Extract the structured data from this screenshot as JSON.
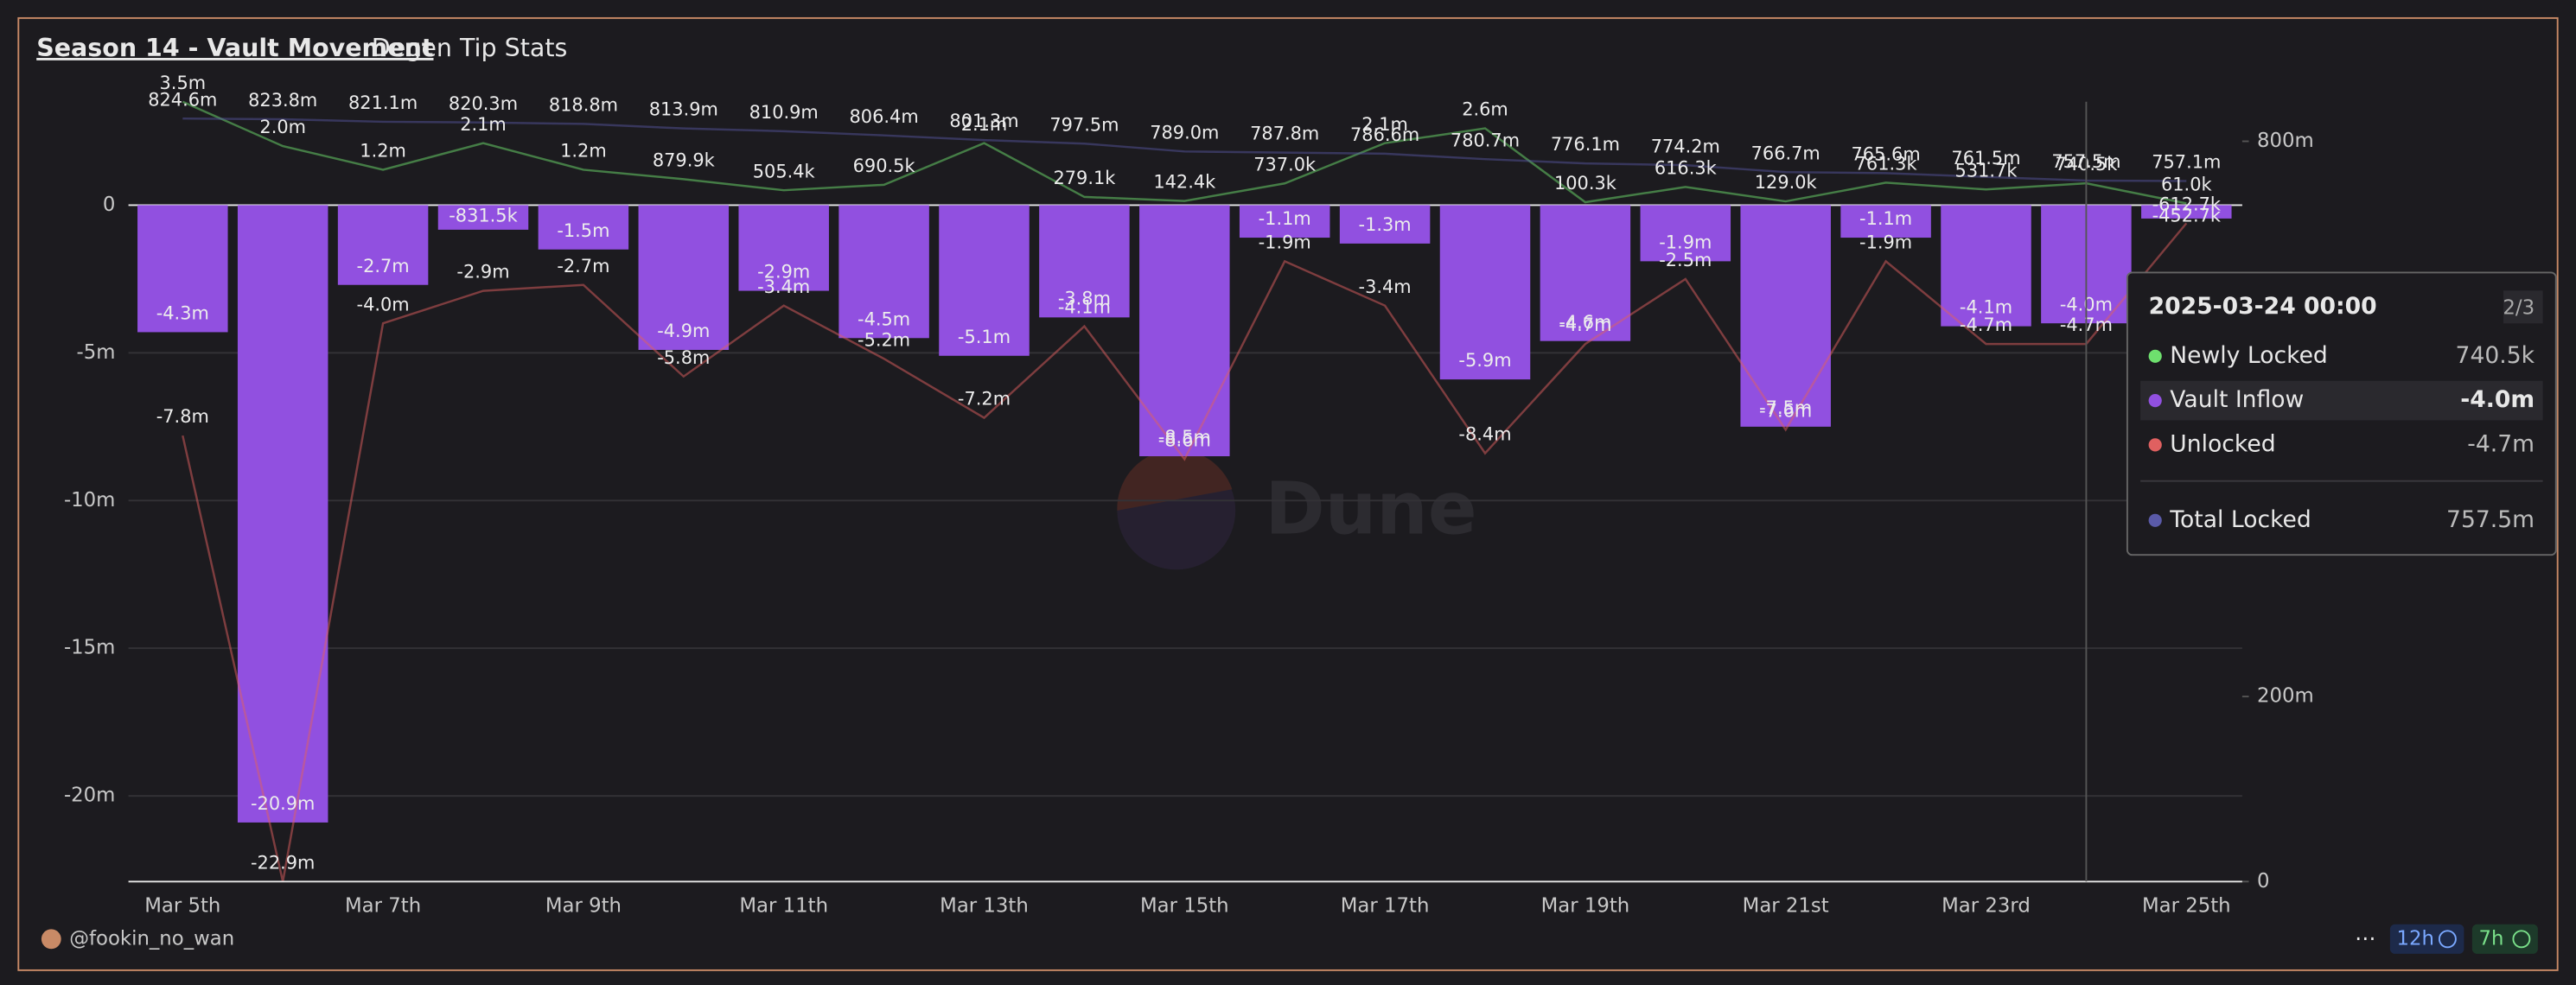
{
  "chart_data": {
    "type": "bar",
    "title": "Season 14 - Vault Movement",
    "tab": "Degen Tip Stats",
    "author": "@fookin_no_wan",
    "watermark": "Dune",
    "badges": [
      "12h",
      "7h"
    ],
    "categories": [
      "Mar 5th",
      null,
      "Mar 7th",
      null,
      "Mar 9th",
      null,
      "Mar 11th",
      null,
      "Mar 13th",
      null,
      "Mar 15th",
      null,
      "Mar 17th",
      null,
      "Mar 19th",
      null,
      "Mar 21st",
      null,
      "Mar 23rd",
      null,
      "Mar 25th"
    ],
    "ylim": [
      -22.9,
      3.5
    ],
    "yticks": [
      0,
      {
        "value": -5,
        "label": "-5m"
      },
      {
        "value": -10,
        "label": "-10m"
      },
      {
        "value": -15,
        "label": "-15m"
      },
      {
        "value": -20,
        "label": "-20m"
      }
    ],
    "y2lim": [
      0,
      842.7
    ],
    "y2ticks": [
      0,
      {
        "value": 200,
        "label": "200m"
      },
      {
        "value": 800,
        "label": "800m"
      }
    ],
    "grid": true,
    "series": [
      {
        "name": "Newly Locked",
        "type": "line",
        "color": "#6ee06e",
        "values": [
          3.5,
          2.0,
          1.2,
          2.1,
          1.2,
          0.8799,
          0.5054,
          0.6905,
          2.1,
          0.2791,
          0.1424,
          0.737,
          2.1,
          2.6,
          0.1003,
          0.6163,
          0.129,
          0.7613,
          0.5317,
          0.7405,
          0.061
        ],
        "value_labels": [
          "3.5m",
          "2.0m",
          "1.2m",
          "2.1m",
          "1.2m",
          "879.9k",
          "505.4k",
          "690.5k",
          "2.1m",
          "279.1k",
          "142.4k",
          "737.0k",
          "2.1m",
          "2.6m",
          "100.3k",
          "616.3k",
          "129.0k",
          "761.3k",
          "531.7k",
          "740.5k",
          "61.0k"
        ]
      },
      {
        "name": "Vault Inflow",
        "type": "bar",
        "color": "#9150e0",
        "values": [
          -4.3,
          -20.9,
          -2.7,
          -0.8315,
          -1.5,
          -4.9,
          -2.9,
          -4.5,
          -5.1,
          -3.8,
          -8.5,
          -1.1,
          -1.3,
          -5.9,
          -4.6,
          -1.9,
          -7.5,
          -1.1,
          -4.1,
          -4.0,
          -0.4527
        ],
        "value_labels": [
          "-4.3m",
          "-20.9m",
          "-2.7m",
          "-831.5k",
          "-1.5m",
          "-4.9m",
          "-2.9m",
          "-4.5m",
          "-5.1m",
          "-3.8m",
          "-8.5m",
          "-1.1m",
          "-1.3m",
          "-5.9m",
          "-4.6m",
          "-1.9m",
          "-7.5m",
          "-1.1m",
          "-4.1m",
          "-4.0m",
          "-452.7k"
        ]
      },
      {
        "name": "Unlocked",
        "type": "line",
        "color": "#e06060",
        "values": [
          -7.8,
          -22.9,
          -4.0,
          -2.9,
          -2.7,
          -5.8,
          -3.4,
          -5.2,
          -7.2,
          -4.1,
          -8.6,
          -1.9,
          -3.4,
          -8.4,
          -4.7,
          -2.5,
          -7.6,
          -1.9,
          -4.7,
          -4.7,
          -0.6127
        ],
        "value_labels": [
          "-7.8m",
          "-22.9m",
          "-4.0m",
          "-2.9m",
          "-2.7m",
          "-5.8m",
          "-3.4m",
          "-5.2m",
          "-7.2m",
          "-4.1m",
          "-8.6m",
          "-1.9m",
          "-3.4m",
          "-8.4m",
          "-4.7m",
          "-2.5m",
          "-7.6m",
          "-1.9m",
          "-4.7m",
          "-4.7m",
          "-612.7k"
        ]
      },
      {
        "name": "Total Locked",
        "type": "line",
        "axis": "y2",
        "color": "#5a5aa8",
        "values": [
          824.6,
          823.8,
          821.1,
          820.3,
          818.8,
          813.9,
          810.9,
          806.4,
          801.3,
          797.5,
          789.0,
          787.8,
          786.6,
          780.7,
          776.1,
          774.2,
          766.7,
          765.6,
          761.5,
          757.5,
          757.1
        ],
        "value_labels": [
          "824.6m",
          "823.8m",
          "821.1m",
          "820.3m",
          "818.8m",
          "813.9m",
          "810.9m",
          "806.4m",
          "801.3m",
          "797.5m",
          "789.0m",
          "787.8m",
          "786.6m",
          "780.7m",
          "776.1m",
          "774.2m",
          "766.7m",
          "765.6m",
          "761.5m",
          "757.5m",
          "757.1m"
        ]
      }
    ],
    "tooltip": {
      "title": "2025-03-24 00:00",
      "page": "2/3",
      "values": [
        "740.5k",
        "-4.0m",
        "-4.7m",
        "757.5m"
      ]
    }
  }
}
